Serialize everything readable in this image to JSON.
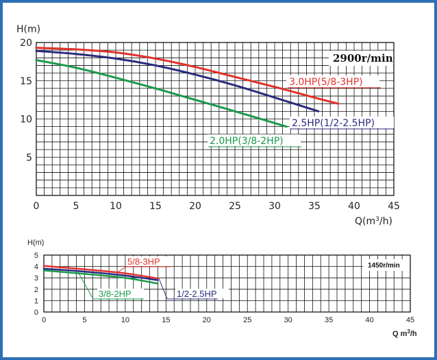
{
  "chart_data": [
    {
      "type": "line",
      "speed_label": "2900r/min",
      "ylabel": "H(m)",
      "xlabel": "Q(m³/h)",
      "xlim": [
        0,
        45
      ],
      "ylim": [
        0,
        20
      ],
      "xticks": [
        0,
        5,
        10,
        15,
        20,
        25,
        30,
        35,
        40,
        45
      ],
      "yticks": [
        5,
        10,
        15,
        20
      ],
      "series": [
        {
          "name": "3.0HP(5/8-3HP)",
          "color": "#e2312a",
          "x": [
            0,
            5,
            10,
            15,
            20,
            25,
            30,
            35,
            38
          ],
          "y": [
            19.3,
            19.1,
            18.7,
            17.9,
            16.8,
            15.5,
            14.2,
            12.8,
            12.0
          ]
        },
        {
          "name": "2.5HP(1/2-2.5HP)",
          "color": "#2a2a7e",
          "x": [
            0,
            5,
            10,
            15,
            20,
            25,
            30,
            35.5
          ],
          "y": [
            18.9,
            18.5,
            17.9,
            17.0,
            15.8,
            14.4,
            12.8,
            11.0
          ]
        },
        {
          "name": "2.0HP(3/8-2HP)",
          "color": "#1a9a4a",
          "x": [
            0,
            5,
            10,
            15,
            20,
            25,
            31.5
          ],
          "y": [
            17.7,
            16.7,
            15.4,
            14.0,
            12.5,
            11.0,
            9.0
          ]
        }
      ]
    },
    {
      "type": "line",
      "speed_label": "1450r/min",
      "ylabel": "H(m)",
      "xlabel": "Q m³/h",
      "xlim": [
        0,
        45
      ],
      "ylim": [
        0,
        5
      ],
      "xticks": [
        0,
        5,
        10,
        15,
        20,
        25,
        30,
        35,
        40,
        45
      ],
      "yticks": [
        0,
        1,
        2,
        3,
        4,
        5
      ],
      "series": [
        {
          "name": "5/8-3HP",
          "color": "#e2312a",
          "x": [
            0,
            5,
            10,
            14
          ],
          "y": [
            4.05,
            3.75,
            3.4,
            2.95
          ]
        },
        {
          "name": "1/2-2.5HP",
          "color": "#2a2a7e",
          "x": [
            0,
            5,
            10,
            14
          ],
          "y": [
            3.8,
            3.55,
            3.2,
            2.8
          ]
        },
        {
          "name": "3/8-2HP",
          "color": "#1a9a4a",
          "x": [
            0,
            5,
            10,
            14
          ],
          "y": [
            3.65,
            3.35,
            3.0,
            2.5
          ]
        }
      ]
    }
  ]
}
